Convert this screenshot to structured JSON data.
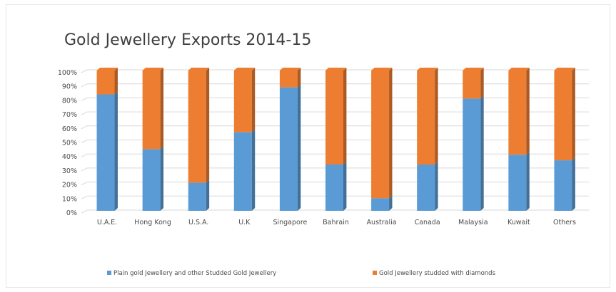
{
  "chart_data": {
    "type": "bar",
    "stacked": true,
    "percent": true,
    "title": "Gold Jewellery Exports 2014-15",
    "categories": [
      "U.A.E.",
      "Hong Kong",
      "U.S.A.",
      "U.K",
      "Singapore",
      "Bahrain",
      "Australia",
      "Canada",
      "Malaysia",
      "Kuwait",
      "Others"
    ],
    "series": [
      {
        "name": "Plain gold Jewellery and other Studded Gold  Jewellery",
        "color": "#5b9bd5",
        "values": [
          83,
          44,
          20,
          56,
          88,
          33,
          9,
          33,
          80,
          40,
          36
        ]
      },
      {
        "name": "Gold Jewellery studded with diamonds",
        "color": "#ed7d31",
        "values": [
          17,
          56,
          80,
          44,
          12,
          67,
          91,
          67,
          20,
          60,
          64
        ]
      }
    ],
    "ylim": [
      0,
      100
    ],
    "yticks": [
      "0%",
      "10%",
      "20%",
      "30%",
      "40%",
      "50%",
      "60%",
      "70%",
      "80%",
      "90%",
      "100%"
    ],
    "grid": true,
    "legend": "bottom"
  }
}
